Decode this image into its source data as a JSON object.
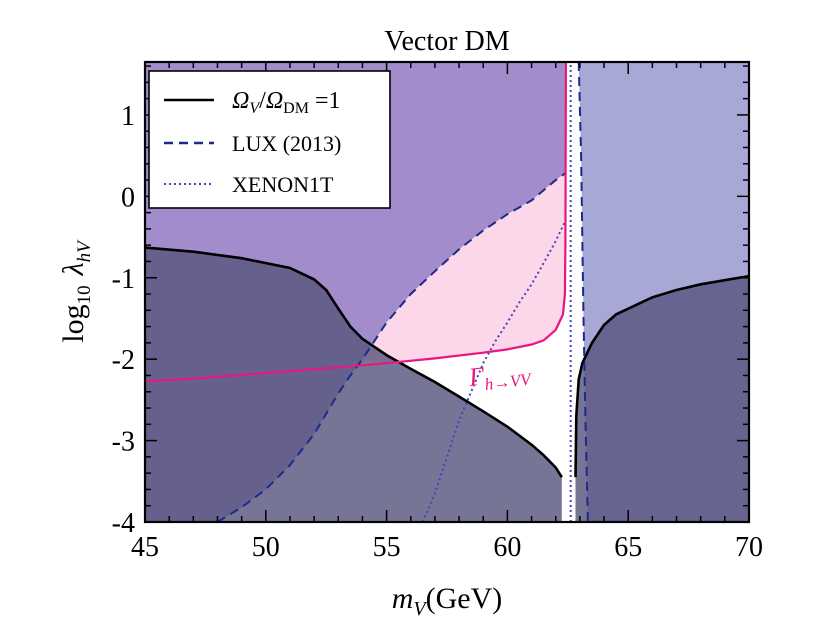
{
  "chart_data": {
    "type": "area",
    "title": "Vector DM",
    "xlabel_main": "m",
    "xlabel_sub": "V",
    "xlabel_unit": "(GeV)",
    "ylabel_main": "log",
    "ylabel_sub10": "10",
    "ylabel_lambda": "λ",
    "ylabel_sub_hv": "hV",
    "xlim": [
      45,
      70
    ],
    "ylim": [
      -4,
      1.65
    ],
    "xticks": [
      45,
      50,
      55,
      60,
      65,
      70
    ],
    "yticks": [
      -4,
      -3,
      -2,
      -1,
      0,
      1
    ],
    "xtick_labels": [
      "45",
      "50",
      "55",
      "60",
      "65",
      "70"
    ],
    "ytick_labels": [
      "-4",
      "-3",
      "-2",
      "-1",
      "0",
      "1"
    ],
    "legend": {
      "position": "top-left",
      "entries": [
        {
          "label_omega": "Ω",
          "label_v": "V",
          "label_slash": "/",
          "label_dm": "DM",
          "label_eq": " =1",
          "style": "solid",
          "color": "#000000"
        },
        {
          "label": "LUX (2013)",
          "style": "dashed",
          "color": "#1c2a8c"
        },
        {
          "label": "XENON1T",
          "style": "dotted",
          "color": "#4444bb"
        }
      ]
    },
    "annotation": {
      "gamma": "Γ",
      "sub": "h→VV"
    },
    "colors": {
      "excluded_lux": "#a28ccc",
      "excluded_xenon_right": "#a7a8d6",
      "overabundant": "#59577f",
      "invisible_width": "#fbd5e8",
      "relic_line": "#000000",
      "lux_line": "#1c2a8c",
      "xenon_line": "#4444bb",
      "gamma_line": "#e8167f"
    },
    "series": [
      {
        "name": "relic_left",
        "x": [
          45,
          47,
          49,
          51,
          52,
          52.5,
          53,
          53.5,
          54,
          55,
          56,
          57,
          58,
          59,
          60,
          61,
          61.5,
          62,
          62.25
        ],
        "y": [
          -0.63,
          -0.68,
          -0.76,
          -0.88,
          -1.02,
          -1.15,
          -1.38,
          -1.6,
          -1.75,
          -1.95,
          -2.12,
          -2.28,
          -2.46,
          -2.64,
          -2.83,
          -3.05,
          -3.18,
          -3.33,
          -3.45
        ]
      },
      {
        "name": "relic_right",
        "x": [
          62.82,
          62.85,
          62.95,
          63.1,
          63.5,
          64,
          64.5,
          65,
          66,
          67,
          68,
          69,
          70
        ],
        "y": [
          -3.45,
          -2.7,
          -2.25,
          -2.05,
          -1.8,
          -1.58,
          -1.45,
          -1.38,
          -1.24,
          -1.15,
          -1.08,
          -1.03,
          -0.98
        ]
      },
      {
        "name": "lux_left",
        "x": [
          48,
          49,
          50,
          51,
          52,
          53,
          53.5,
          54,
          55,
          56,
          57,
          58,
          59,
          60,
          61,
          62,
          62.38
        ],
        "y": [
          -4,
          -3.82,
          -3.6,
          -3.3,
          -2.92,
          -2.42,
          -2.2,
          -2.0,
          -1.55,
          -1.2,
          -0.92,
          -0.65,
          -0.42,
          -0.22,
          -0.05,
          0.2,
          0.28
        ]
      },
      {
        "name": "lux_right",
        "x": [
          62.95,
          63.05,
          63.15,
          63.25,
          63.33
        ],
        "y": [
          1.65,
          0.5,
          -1.5,
          -3.0,
          -4
        ]
      },
      {
        "name": "xenon_left",
        "x": [
          56.5,
          57,
          57.5,
          58,
          58.5,
          59,
          59.5,
          60,
          60.5,
          61,
          61.5,
          62,
          62.4
        ],
        "y": [
          -4,
          -3.65,
          -3.2,
          -2.75,
          -2.4,
          -2.05,
          -1.78,
          -1.55,
          -1.3,
          -1.08,
          -0.82,
          -0.55,
          -0.3
        ]
      },
      {
        "name": "xenon_right",
        "x": [
          62.62,
          62.62
        ],
        "y": [
          -4,
          1.65
        ]
      },
      {
        "name": "gamma_h_to_VV",
        "x": [
          45,
          47,
          50,
          53,
          55,
          57,
          59,
          60,
          61,
          61.5,
          62,
          62.3,
          62.38,
          62.4,
          62.42
        ],
        "y": [
          -2.27,
          -2.24,
          -2.17,
          -2.1,
          -2.05,
          -1.99,
          -1.92,
          -1.88,
          -1.82,
          -1.77,
          -1.64,
          -1.45,
          -1.2,
          -0.6,
          1.65
        ]
      }
    ]
  }
}
